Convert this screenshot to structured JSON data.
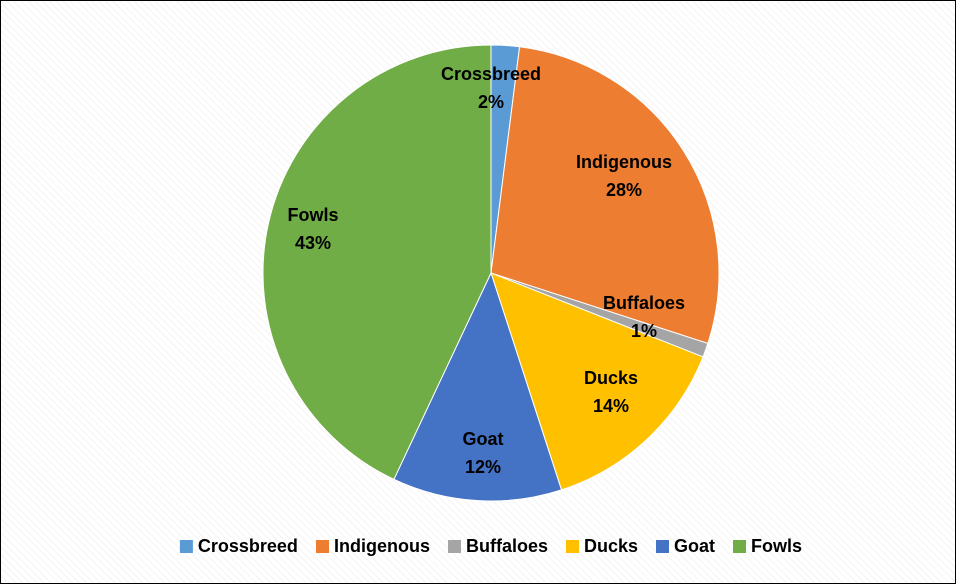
{
  "chart_data": {
    "type": "pie",
    "title": "",
    "series": [
      {
        "name": "Crossbreed",
        "value": 2,
        "label": "2%",
        "color": "#5B9BD5"
      },
      {
        "name": "Indigenous",
        "value": 28,
        "label": "28%",
        "color": "#ED7D31"
      },
      {
        "name": "Buffaloes",
        "value": 1,
        "label": "1%",
        "color": "#A5A5A5"
      },
      {
        "name": "Ducks",
        "value": 14,
        "label": "14%",
        "color": "#FFC000"
      },
      {
        "name": "Goat",
        "value": 12,
        "label": "12%",
        "color": "#4472C4"
      },
      {
        "name": "Fowls",
        "value": 43,
        "label": "43%",
        "color": "#70AD47"
      }
    ],
    "legend_position": "bottom",
    "start_angle_deg": 0,
    "direction": "clockwise"
  }
}
